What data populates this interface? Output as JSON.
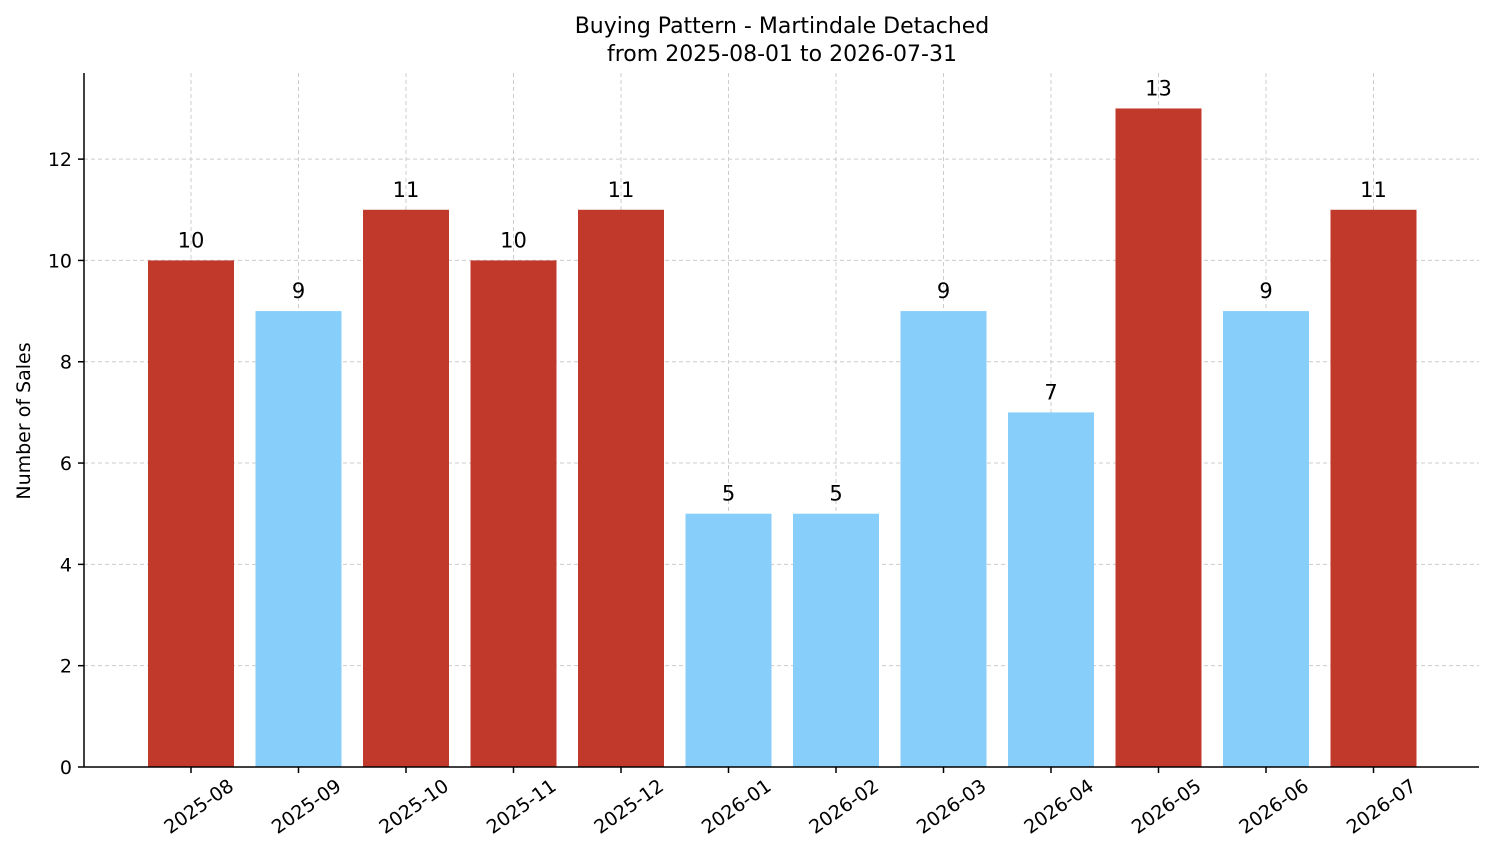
{
  "chart_data": {
    "type": "bar",
    "title_line1": "Buying Pattern - Martindale Detached",
    "title_line2": "from 2025-08-01 to 2026-07-31",
    "xlabel": "",
    "ylabel": "Number of Sales",
    "categories": [
      "2025-08",
      "2025-09",
      "2025-10",
      "2025-11",
      "2025-12",
      "2026-01",
      "2026-02",
      "2026-03",
      "2026-04",
      "2026-05",
      "2026-06",
      "2026-07"
    ],
    "values": [
      10,
      9,
      11,
      10,
      11,
      5,
      5,
      9,
      7,
      13,
      9,
      11
    ],
    "ylim": [
      0,
      13.7
    ],
    "yticks": [
      0,
      2,
      4,
      6,
      8,
      10,
      12
    ],
    "grid": true,
    "colors": {
      "high": "#c0392b",
      "low": "#87cefa"
    },
    "bar_colors": [
      "high",
      "low",
      "high",
      "high",
      "high",
      "low",
      "low",
      "low",
      "low",
      "high",
      "low",
      "high"
    ]
  }
}
